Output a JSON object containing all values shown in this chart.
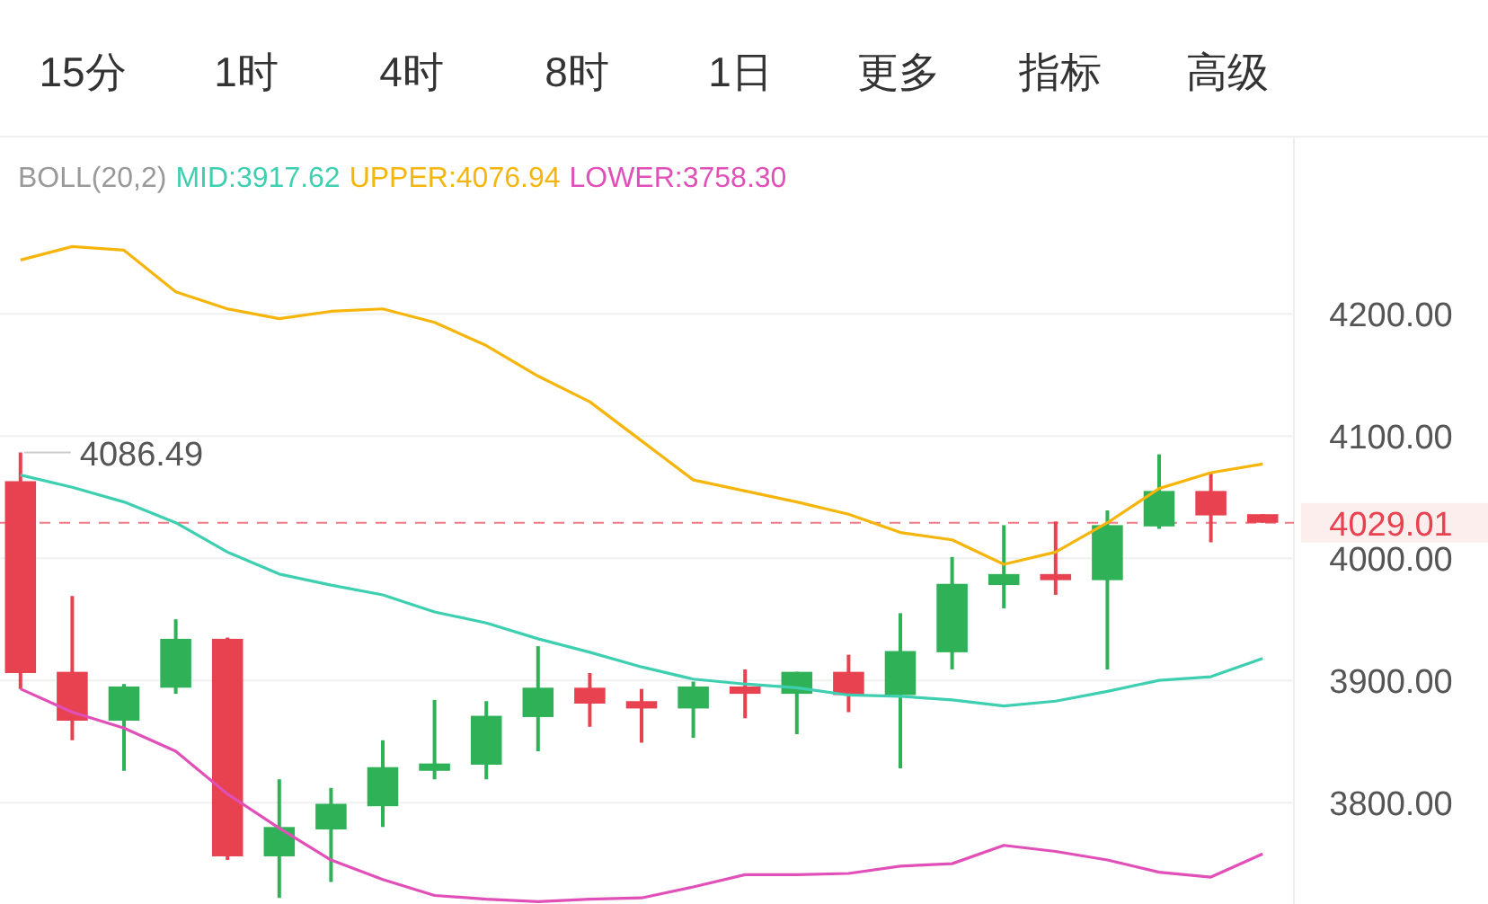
{
  "chart_data": {
    "type": "candlestick",
    "title": "BOLL(20,2)",
    "categories": [
      null,
      null,
      null,
      null,
      null,
      null,
      null,
      null,
      null,
      null,
      null,
      null,
      null,
      null,
      null,
      null,
      null,
      null,
      null,
      null,
      null,
      null,
      null,
      null,
      null
    ],
    "ohlc": [
      [
        4063,
        4086.49,
        3893,
        3906
      ],
      [
        3907,
        3969,
        3851,
        3867
      ],
      [
        3867,
        3897,
        3826,
        3895
      ],
      [
        3894,
        3950,
        3889,
        3934
      ],
      [
        3934,
        3935,
        3753,
        3756
      ],
      [
        3756,
        3819,
        3722,
        3780
      ],
      [
        3778,
        3812,
        3735,
        3799
      ],
      [
        3797,
        3851,
        3780,
        3829
      ],
      [
        3826,
        3884,
        3819,
        3832
      ],
      [
        3831,
        3883,
        3819,
        3871
      ],
      [
        3870,
        3928,
        3842,
        3894
      ],
      [
        3894,
        3906,
        3862,
        3881
      ],
      [
        3883,
        3893,
        3849,
        3877
      ],
      [
        3877,
        3899,
        3853,
        3895
      ],
      [
        3895,
        3909,
        3869,
        3889
      ],
      [
        3889,
        3907,
        3856,
        3907
      ],
      [
        3907,
        3921,
        3874,
        3888
      ],
      [
        3888,
        3955,
        3828,
        3924
      ],
      [
        3923,
        4001,
        3909,
        3979
      ],
      [
        3978,
        4027,
        3959,
        3987
      ],
      [
        3987,
        4030,
        3970,
        3982
      ],
      [
        3982,
        4039,
        3909,
        4027
      ],
      [
        4026,
        4085,
        4024,
        4055
      ],
      [
        4055,
        4070,
        4013,
        4035
      ],
      [
        4036,
        4036,
        4029.01,
        4029.01
      ]
    ],
    "colors": [
      "#e8414f",
      "#e8414f",
      "#2fb157",
      "#2fb157",
      "#e8414f",
      "#2fb157",
      "#2fb157",
      "#2fb157",
      "#2fb157",
      "#2fb157",
      "#2fb157",
      "#e8414f",
      "#e8414f",
      "#2fb157",
      "#e8414f",
      "#2fb157",
      "#e8414f",
      "#2fb157",
      "#2fb157",
      "#2fb157",
      "#e8414f",
      "#2fb157",
      "#2fb157",
      "#e8414f",
      "#e8414f"
    ],
    "series": [
      {
        "name": "MID:3917.62",
        "type": "line",
        "color": "#3ecfb0",
        "values": [
          4068,
          4058,
          4046,
          4029,
          4005,
          3987,
          3978,
          3970,
          3956,
          3947,
          3934,
          3923,
          3911,
          3901,
          3897,
          3894,
          3888,
          3887,
          3884,
          3879,
          3883,
          3891,
          3900,
          3903,
          3918
        ]
      },
      {
        "name": "UPPER:4076.94",
        "type": "line",
        "color": "#f5b50a",
        "values": [
          4244,
          4255,
          4252,
          4218,
          4204,
          4196,
          4202,
          4204,
          4193,
          4174,
          4149,
          4128,
          4096,
          4064,
          4055,
          4046,
          4036,
          4021,
          4015,
          3995,
          4005,
          4029,
          4057,
          4070,
          4077
        ]
      },
      {
        "name": "LOWER:3758.30",
        "type": "line",
        "color": "#e14fb8",
        "values": [
          3893,
          3874,
          3861,
          3842,
          3807,
          3779,
          3753,
          3737,
          3724,
          3721,
          3719,
          3721,
          3722,
          3731,
          3741,
          3741,
          3742,
          3748,
          3750,
          3765,
          3760,
          3753,
          3743,
          3739,
          3758
        ]
      }
    ],
    "annotations": [
      "15分",
      "1时",
      "4时",
      "8时",
      "1日",
      "更多",
      "指标",
      "高级",
      "4086.49"
    ],
    "ylim": [
      3717,
      4345
    ],
    "yticks": [
      {
        "value": 3800,
        "label": "3800.00"
      },
      {
        "value": 3900,
        "label": "3900.00"
      },
      {
        "value": 4000,
        "label": "4000.00"
      },
      {
        "value": 4100,
        "label": "4100.00"
      },
      {
        "value": 4200,
        "label": "4200.00"
      }
    ],
    "ref_lines": [
      {
        "axis": "y",
        "value": 4029.01,
        "label": "4029.01",
        "color": "#e8414f",
        "line_style": "dashed"
      }
    ],
    "grid": "y",
    "legend": "top",
    "tick_labels": "y"
  }
}
